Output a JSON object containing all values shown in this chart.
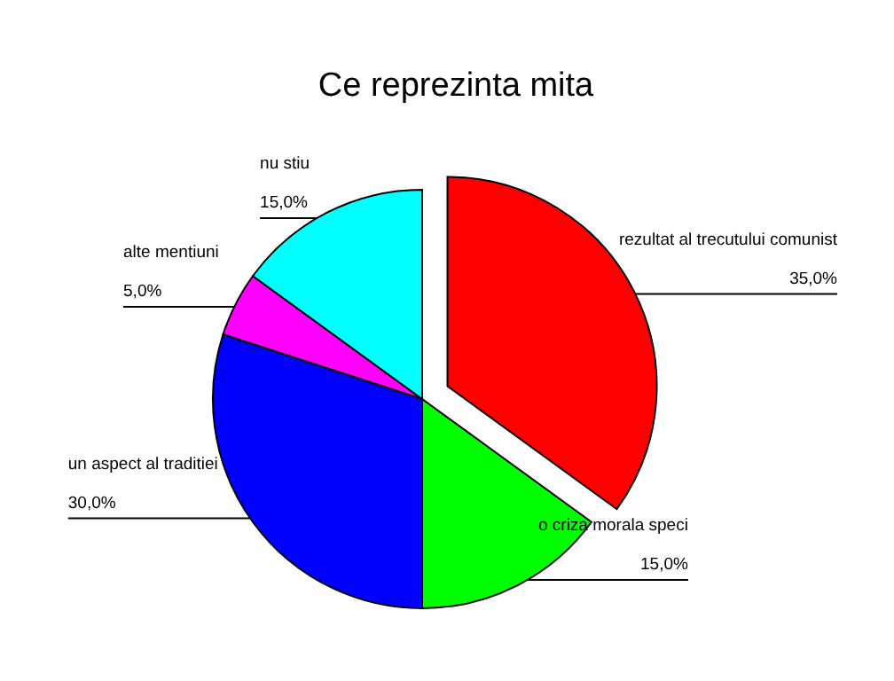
{
  "chart_data": {
    "type": "pie",
    "title": "Ce reprezinta mita",
    "categories": [
      "rezultat al trecutului comunist",
      "o criza morala speci",
      "un aspect al traditiei",
      "alte mentiuni",
      "nu stiu"
    ],
    "values": [
      35,
      15,
      30,
      5,
      15
    ],
    "colors": [
      "#ff0000",
      "#00ff00",
      "#0000ff",
      "#ff00ff",
      "#00ffff"
    ],
    "value_labels": [
      "35,0%",
      "15,0%",
      "30,0%",
      "5,0%",
      "15,0%"
    ]
  }
}
